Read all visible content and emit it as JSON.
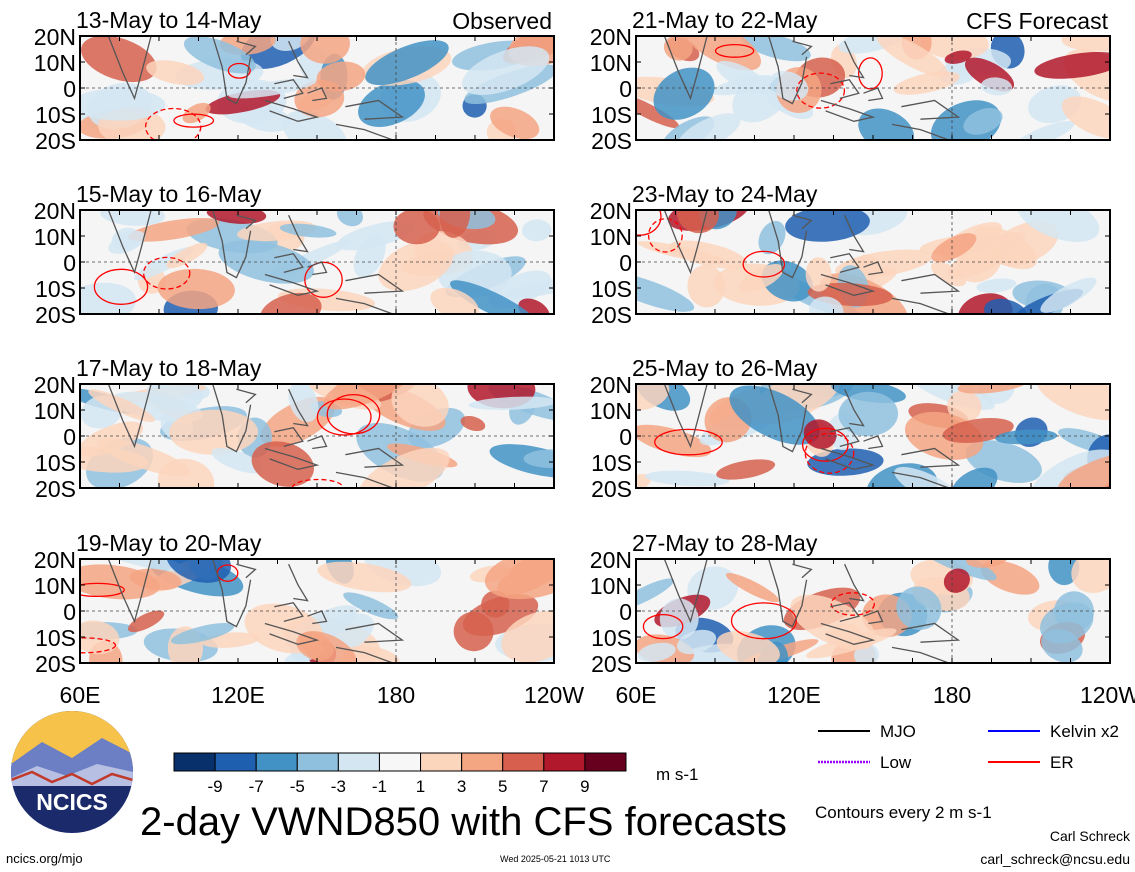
{
  "colors": {
    "frame": "#000000",
    "mjo": "#000000",
    "kelvin": "#0000ff",
    "low": "#9900ff",
    "er": "#ff0000"
  },
  "panels": {
    "observed_label": "Observed",
    "forecast_label": "CFS Forecast",
    "left": [
      "13-May to 14-May",
      "15-May to 16-May",
      "17-May to 18-May",
      "19-May to 20-May"
    ],
    "right": [
      "21-May to 22-May",
      "23-May to 24-May",
      "25-May to 26-May",
      "27-May to 28-May"
    ]
  },
  "axes": {
    "lat_ticks": [
      "20N",
      "10N",
      "0",
      "10S",
      "20S"
    ],
    "lon_ticks": [
      "60E",
      "120E",
      "180",
      "120W"
    ]
  },
  "colorbar": {
    "labels": [
      "-9",
      "-7",
      "-5",
      "-3",
      "-1",
      "1",
      "3",
      "5",
      "7",
      "9"
    ],
    "colors": [
      "#08306b",
      "#1f5fb0",
      "#4292c6",
      "#8fc1de",
      "#d4e6f2",
      "#f7f7f7",
      "#fcd5bd",
      "#f4a582",
      "#d6604d",
      "#b2182b",
      "#67001f"
    ],
    "units": "m s-1"
  },
  "legend": [
    {
      "label": "MJO",
      "color": "#000000"
    },
    {
      "label": "Kelvin x2",
      "color": "#0000ff"
    },
    {
      "label": "Low",
      "color": "#9900ff"
    },
    {
      "label": "ER",
      "color": "#ff0000"
    }
  ],
  "logo": {
    "text": "NCICS"
  },
  "title": "2-day VWND850 with CFS forecasts",
  "footer": {
    "url": "ncics.org/mjo",
    "timestamp": "Wed 2025-05-21 1013 UTC",
    "author": "Carl Schreck",
    "email": "carl_schreck@ncsu.edu",
    "contours": "Contours every 2 m s-1"
  },
  "chart_data": {
    "type": "heatmap",
    "variable": "VWND850",
    "units": "m s-1",
    "lat_range": [
      -20,
      20
    ],
    "lon_range": [
      60,
      240
    ],
    "contour_interval": 2,
    "panels": [
      {
        "dates": "13-May to 14-May",
        "source": "Observed"
      },
      {
        "dates": "15-May to 16-May",
        "source": "Observed"
      },
      {
        "dates": "17-May to 18-May",
        "source": "Observed"
      },
      {
        "dates": "19-May to 20-May",
        "source": "Observed"
      },
      {
        "dates": "21-May to 22-May",
        "source": "CFS Forecast"
      },
      {
        "dates": "23-May to 24-May",
        "source": "CFS Forecast"
      },
      {
        "dates": "25-May to 26-May",
        "source": "CFS Forecast"
      },
      {
        "dates": "27-May to 28-May",
        "source": "CFS Forecast"
      }
    ]
  }
}
